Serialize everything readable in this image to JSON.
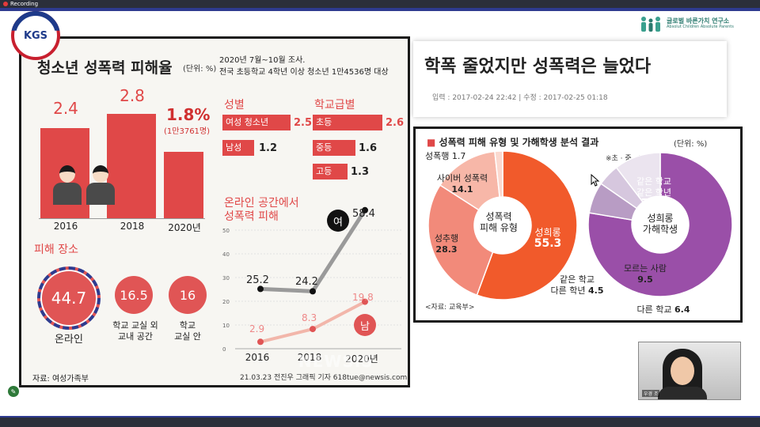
{
  "recording": {
    "label": "Recording"
  },
  "kgs_logo": {
    "text": "KGS"
  },
  "org_logo": {
    "name": "글로벌 바른가치 연구소",
    "sub": "Absolut Children Absolute Parents"
  },
  "infographic": {
    "title": "청소년 성폭력 피해율",
    "unit": "(단위: %)",
    "subtitle_line1": "2020년 7월~10월 조사.",
    "subtitle_line2": "전국 초등학교 4학년 이상 청소년 1만4536명 대상",
    "bars": [
      {
        "year": "2016",
        "value": "2.4",
        "ratio": 0.86
      },
      {
        "year": "2018",
        "value": "2.8",
        "ratio": 1.0
      },
      {
        "year": "2020년",
        "value": "1.8%",
        "note": "(1만3761명)",
        "ratio": 0.64
      }
    ],
    "gender": {
      "heading": "성별",
      "items": [
        {
          "label": "여성 청소년",
          "value": "2.5"
        },
        {
          "label": "남성",
          "value": "1.2"
        }
      ]
    },
    "school": {
      "heading": "학교급별",
      "items": [
        {
          "label": "초등",
          "value": "2.6"
        },
        {
          "label": "중등",
          "value": "1.6"
        },
        {
          "label": "고등",
          "value": "1.3"
        }
      ]
    },
    "online": {
      "heading_line1": "온라인 공간에서",
      "heading_line2": "성폭력 피해",
      "female_badge": "여",
      "male_badge": "남",
      "years": [
        "2016",
        "2018",
        "2020년"
      ],
      "female_values": [
        "25.2",
        "24.2",
        "58.4"
      ],
      "male_values": [
        "2.9",
        "8.3",
        "19.8"
      ],
      "y_ticks": [
        "50",
        "40",
        "30",
        "20",
        "10",
        "0"
      ]
    },
    "places": {
      "heading": "피해 장소",
      "items": [
        {
          "value": "44.7",
          "label": "온라인"
        },
        {
          "value": "16.5",
          "label": "학교 교실 외\n교내 공간"
        },
        {
          "value": "16",
          "label": "학교\n교실 안"
        }
      ]
    },
    "source": "자료: 여성가족부",
    "credit": "21.03.23 전진우 그래픽 기자 618tue@newsis.com",
    "watermark": "NEWSIS"
  },
  "headline": {
    "title": "학폭 줄었지만 성폭력은 늘었다",
    "meta": "입력 : 2017-02-24 22:42  |  수정 : 2017-02-25 01:18"
  },
  "donut": {
    "title": "성폭력 피해 유형 및 가해학생 분석 결과",
    "unit": "(단위: %)",
    "note": "※초 · 중 · 고 전체",
    "left_center_line1": "성폭력",
    "left_center_line2": "피해 유형",
    "right_center_line1": "성희롱",
    "right_center_line2": "가해학생",
    "left_labels": [
      {
        "label": "성폭행",
        "value": "1.7"
      },
      {
        "label": "사이버 성폭력",
        "value": "14.1"
      },
      {
        "label": "성추행",
        "value": "28.3"
      },
      {
        "label": "성희롱",
        "value": "55.3"
      }
    ],
    "right_labels": [
      {
        "label": "같은 학교\n같은 학년",
        "value": "70.7"
      },
      {
        "label": "모르는 사람",
        "value": "9.5"
      },
      {
        "label": "같은 학교\n다른 학년",
        "value": "4.5"
      },
      {
        "label": "다른 학교",
        "value": "6.4"
      }
    ],
    "source": "<자료: 교육부>"
  },
  "video": {
    "name": "우경 조"
  },
  "colors": {
    "accent_red": "#e04848",
    "purple": "#9a4fa8",
    "orange": "#f15a2b"
  }
}
